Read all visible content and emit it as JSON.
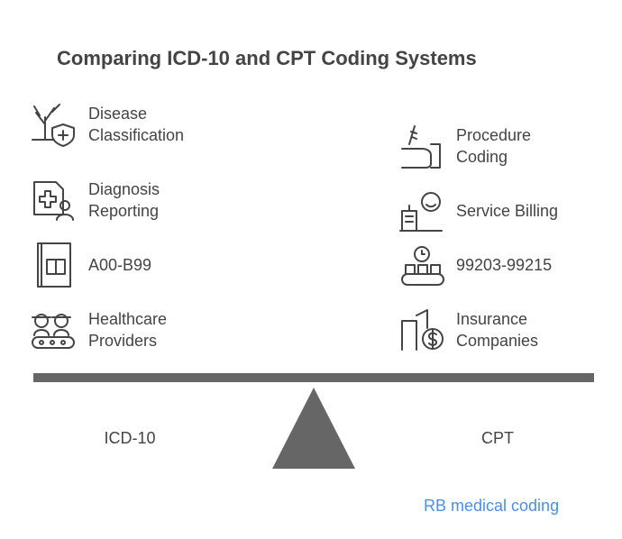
{
  "title": "Comparing ICD-10 and CPT Coding Systems",
  "left": {
    "label": "ICD-10",
    "items": [
      {
        "lines": [
          "Disease",
          "Classification"
        ]
      },
      {
        "lines": [
          "Diagnosis",
          "Reporting"
        ]
      },
      {
        "lines": [
          "A00-B99"
        ]
      },
      {
        "lines": [
          "Healthcare",
          "Providers"
        ]
      }
    ]
  },
  "right": {
    "label": "CPT",
    "items": [
      {
        "lines": [
          "Procedure",
          "Coding"
        ]
      },
      {
        "lines": [
          "Service Billing"
        ]
      },
      {
        "lines": [
          "99203-99215"
        ]
      },
      {
        "lines": [
          "Insurance",
          "Companies"
        ]
      }
    ]
  },
  "footer": "RB medical coding"
}
